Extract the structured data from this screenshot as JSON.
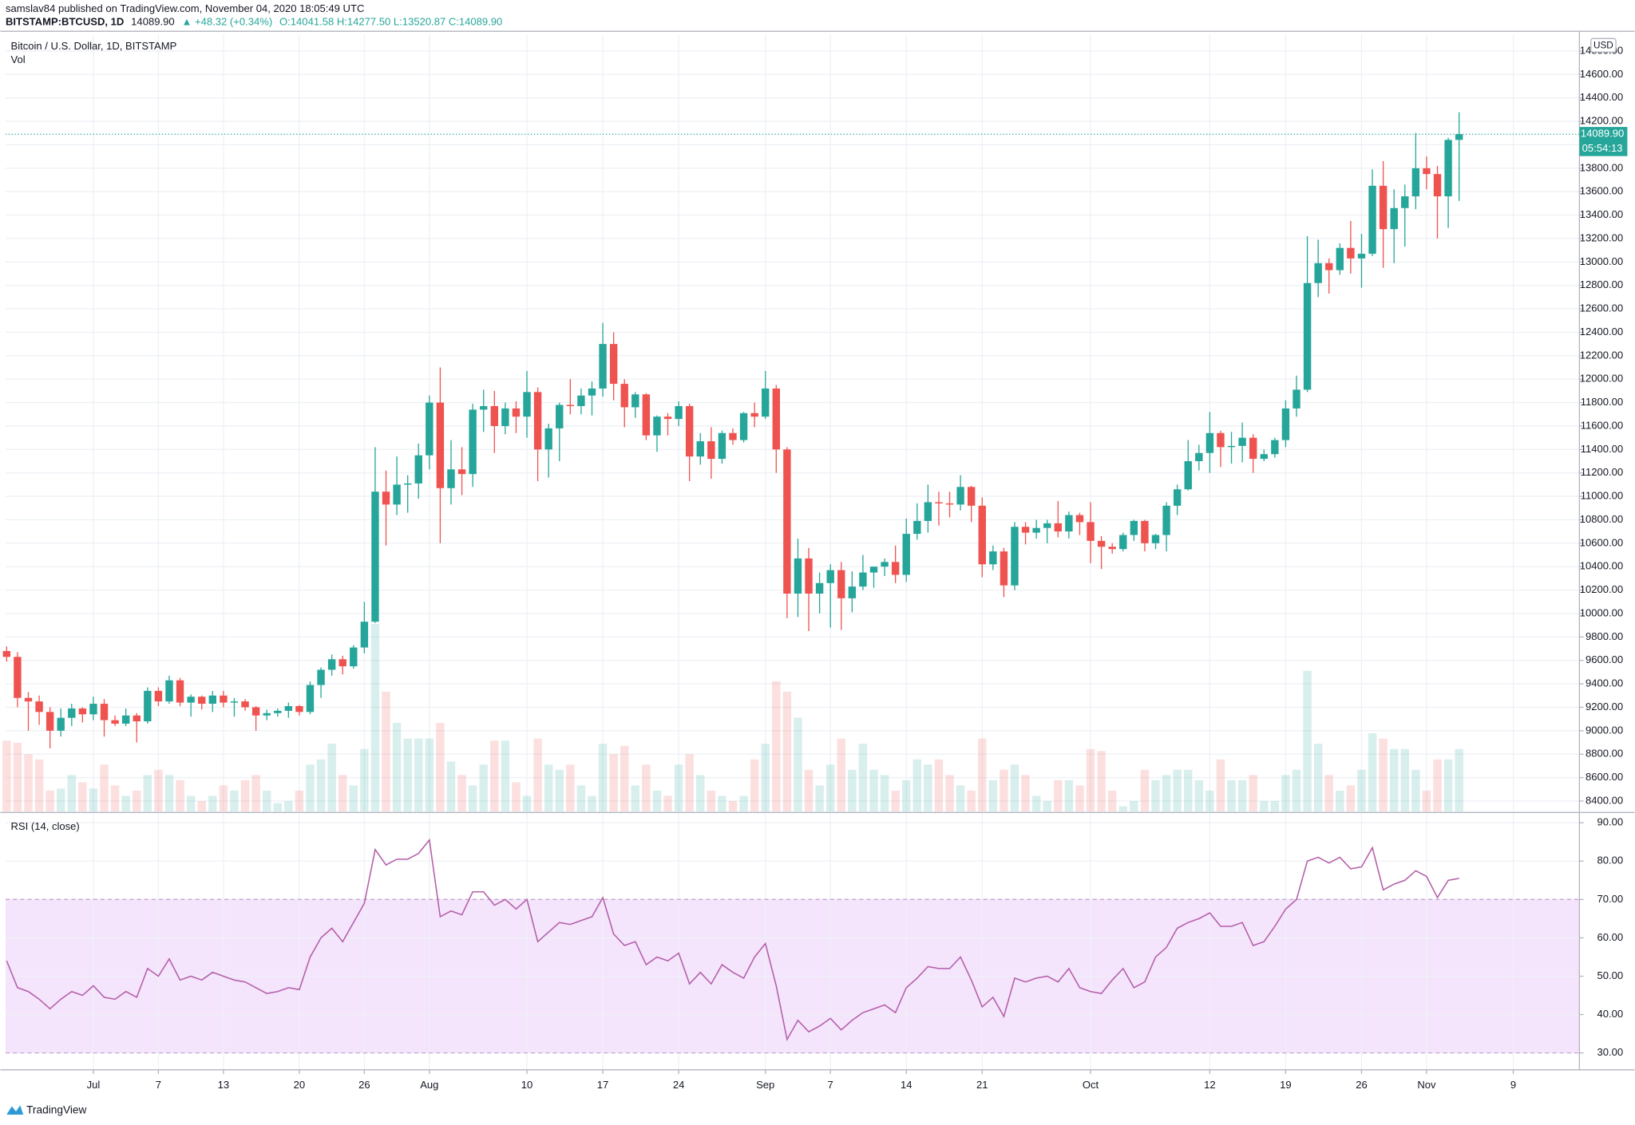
{
  "header": {
    "published": "samslav84 published on TradingView.com, November 04, 2020 18:05:49 UTC",
    "symbol": "BITSTAMP:BTCUSD, 1D",
    "last": "14089.90",
    "change": "▲ +48.32 (+0.34%)",
    "ohlc": "O:14041.58 H:14277.50 L:13520.87 C:14089.90"
  },
  "footer": {
    "brand": "TradingView"
  },
  "chart_data": {
    "type": "candlestick",
    "title": "Bitcoin / U.S. Dollar, 1D, BITSTAMP",
    "currency": "USD",
    "up_color": "#26a69a",
    "down_color": "#ef5350",
    "last_label": "14089.90",
    "countdown": "05:54:13",
    "grid": true,
    "xlim": [
      -0.1,
      145.1
    ],
    "xticks": [
      {
        "value": 8,
        "label": "Jul"
      },
      {
        "value": 14,
        "label": "7"
      },
      {
        "value": 20,
        "label": "13"
      },
      {
        "value": 27,
        "label": "20"
      },
      {
        "value": 33,
        "label": "26"
      },
      {
        "value": 39,
        "label": "Aug"
      },
      {
        "value": 48,
        "label": "10"
      },
      {
        "value": 55,
        "label": "17"
      },
      {
        "value": 62,
        "label": "24"
      },
      {
        "value": 70,
        "label": "Sep"
      },
      {
        "value": 76,
        "label": "7"
      },
      {
        "value": 83,
        "label": "14"
      },
      {
        "value": 90,
        "label": "21"
      },
      {
        "value": 100,
        "label": "Oct"
      },
      {
        "value": 111,
        "label": "12"
      },
      {
        "value": 118,
        "label": "19"
      },
      {
        "value": 125,
        "label": "26"
      },
      {
        "value": 131,
        "label": "Nov"
      },
      {
        "value": 139,
        "label": "9"
      }
    ],
    "ylim": [
      8311,
      14942
    ],
    "yticks": [
      {
        "value": 8400,
        "label": "8400.00"
      },
      {
        "value": 8600,
        "label": "8600.00"
      },
      {
        "value": 8800,
        "label": "8800.00"
      },
      {
        "value": 9000,
        "label": "9000.00"
      },
      {
        "value": 9200,
        "label": "9200.00"
      },
      {
        "value": 9400,
        "label": "9400.00"
      },
      {
        "value": 9600,
        "label": "9600.00"
      },
      {
        "value": 9800,
        "label": "9800.00"
      },
      {
        "value": 10000,
        "label": "10000.00"
      },
      {
        "value": 10200,
        "label": "10200.00"
      },
      {
        "value": 10400,
        "label": "10400.00"
      },
      {
        "value": 10600,
        "label": "10600.00"
      },
      {
        "value": 10800,
        "label": "10800.00"
      },
      {
        "value": 11000,
        "label": "11000.00"
      },
      {
        "value": 11200,
        "label": "11200.00"
      },
      {
        "value": 11400,
        "label": "11400.00"
      },
      {
        "value": 11600,
        "label": "11600.00"
      },
      {
        "value": 11800,
        "label": "11800.00"
      },
      {
        "value": 12000,
        "label": "12000.00"
      },
      {
        "value": 12200,
        "label": "12200.00"
      },
      {
        "value": 12400,
        "label": "12400.00"
      },
      {
        "value": 12600,
        "label": "12600.00"
      },
      {
        "value": 12800,
        "label": "12800.00"
      },
      {
        "value": 13000,
        "label": "13000.00"
      },
      {
        "value": 13200,
        "label": "13200.00"
      },
      {
        "value": 13400,
        "label": "13400.00"
      },
      {
        "value": 13600,
        "label": "13600.00"
      },
      {
        "value": 13800,
        "label": "13800.00"
      },
      {
        "value": 14000,
        "label": "14000.00"
      },
      {
        "value": 14200,
        "label": "14200.00"
      },
      {
        "value": 14400,
        "label": "14400.00"
      },
      {
        "value": 14600,
        "label": "14600.00"
      },
      {
        "value": 14800,
        "label": "14800.00"
      }
    ],
    "open": [
      9680,
      9630,
      9280,
      9250,
      9160,
      9000,
      9110,
      9190,
      9140,
      9230,
      9090,
      9060,
      9130,
      9080,
      9340,
      9250,
      9430,
      9240,
      9290,
      9230,
      9300,
      9240,
      9250,
      9200,
      9130,
      9150,
      9170,
      9210,
      9160,
      9390,
      9520,
      9610,
      9550,
      9710,
      9930,
      11040,
      10930,
      11100,
      11110,
      11350,
      11800,
      11070,
      11230,
      11190,
      11740,
      11770,
      11600,
      11750,
      11680,
      11890,
      11400,
      11580,
      11780,
      11770,
      11860,
      11920,
      12300,
      11960,
      11760,
      11870,
      11520,
      11680,
      11660,
      11770,
      11340,
      11470,
      11320,
      11540,
      11480,
      11710,
      11680,
      11920,
      11400,
      10170,
      10470,
      10170,
      10260,
      10370,
      10130,
      10230,
      10350,
      10400,
      10440,
      10330,
      10680,
      10790,
      10950,
      10940,
      10930,
      11080,
      10920,
      10420,
      10530,
      10240,
      10740,
      10690,
      10730,
      10770,
      10700,
      10840,
      10780,
      10620,
      10570,
      10550,
      10670,
      10790,
      10600,
      10670,
      10920,
      11060,
      11300,
      11370,
      11540,
      11420,
      11430,
      11500,
      11320,
      11360,
      11480,
      11750,
      11910,
      12820,
      12990,
      12930,
      13120,
      13030,
      13070,
      13650,
      13280,
      13460,
      13560,
      13800,
      13750,
      13560,
      14041.58
    ],
    "high": [
      9720,
      9670,
      9330,
      9300,
      9200,
      9190,
      9230,
      9200,
      9290,
      9270,
      9130,
      9190,
      9150,
      9370,
      9370,
      9470,
      9450,
      9310,
      9300,
      9340,
      9340,
      9280,
      9270,
      9210,
      9180,
      9190,
      9240,
      9220,
      9420,
      9540,
      9650,
      9640,
      9730,
      10100,
      11420,
      11220,
      11340,
      11180,
      11450,
      11860,
      12100,
      11480,
      11420,
      11790,
      11910,
      11900,
      11800,
      11810,
      12070,
      11930,
      11620,
      11800,
      12000,
      11920,
      11980,
      12480,
      12400,
      12000,
      11890,
      11880,
      11690,
      11710,
      11810,
      11790,
      11540,
      11590,
      11560,
      11580,
      11720,
      11800,
      12070,
      11950,
      11420,
      10640,
      10560,
      10350,
      10420,
      10440,
      10360,
      10500,
      10400,
      10470,
      10580,
      10810,
      10940,
      11100,
      11040,
      11040,
      11180,
      11090,
      10990,
      10580,
      10560,
      10780,
      10780,
      10800,
      10800,
      10960,
      10870,
      10860,
      10950,
      10660,
      10600,
      10690,
      10800,
      10800,
      10680,
      10950,
      11100,
      11480,
      11440,
      11720,
      11560,
      11550,
      11630,
      11530,
      11400,
      11500,
      11820,
      12030,
      13220,
      13190,
      13030,
      13160,
      13350,
      13240,
      13790,
      13860,
      13620,
      13660,
      14100,
      13900,
      13820,
      14060,
      14277.5
    ],
    "low": [
      9590,
      9200,
      9000,
      9050,
      8850,
      8950,
      9040,
      9070,
      9090,
      8950,
      9040,
      9040,
      8900,
      9060,
      9210,
      9230,
      9210,
      9120,
      9180,
      9160,
      9200,
      9120,
      9170,
      9000,
      9090,
      9120,
      9110,
      9130,
      9140,
      9280,
      9470,
      9480,
      9530,
      9660,
      9920,
      10580,
      10840,
      10860,
      10980,
      11230,
      10600,
      10930,
      11010,
      11080,
      11550,
      11370,
      11530,
      11540,
      11500,
      11130,
      11160,
      11300,
      11700,
      11700,
      11690,
      11850,
      11820,
      11590,
      11670,
      11480,
      11380,
      11520,
      11600,
      11130,
      11270,
      11150,
      11280,
      11440,
      11460,
      11590,
      11660,
      11200,
      9960,
      9970,
      9850,
      10000,
      9880,
      9860,
      10010,
      10200,
      10220,
      10320,
      10260,
      10270,
      10630,
      10690,
      10750,
      10820,
      10880,
      10780,
      10310,
      10370,
      10140,
      10200,
      10590,
      10640,
      10600,
      10650,
      10640,
      10670,
      10430,
      10380,
      10510,
      10530,
      10620,
      10530,
      10550,
      10530,
      10840,
      11050,
      11220,
      11200,
      11250,
      11280,
      11290,
      11200,
      11300,
      11330,
      11420,
      11680,
      11890,
      12700,
      12730,
      12890,
      12900,
      12780,
      13050,
      12950,
      12990,
      13130,
      13450,
      13620,
      13200,
      13290,
      13520.87
    ],
    "close": [
      9630,
      9280,
      9250,
      9160,
      9000,
      9110,
      9190,
      9140,
      9230,
      9090,
      9060,
      9130,
      9080,
      9340,
      9250,
      9430,
      9240,
      9290,
      9230,
      9300,
      9240,
      9250,
      9200,
      9130,
      9150,
      9170,
      9210,
      9160,
      9390,
      9520,
      9610,
      9550,
      9710,
      9930,
      11040,
      10930,
      11100,
      11110,
      11350,
      11800,
      11070,
      11230,
      11190,
      11740,
      11770,
      11600,
      11750,
      11680,
      11890,
      11400,
      11580,
      11780,
      11770,
      11860,
      11920,
      12300,
      11960,
      11760,
      11870,
      11520,
      11680,
      11660,
      11770,
      11340,
      11470,
      11320,
      11540,
      11480,
      11710,
      11680,
      11920,
      11400,
      10170,
      10470,
      10170,
      10260,
      10370,
      10130,
      10230,
      10350,
      10400,
      10440,
      10330,
      10680,
      10790,
      10950,
      10940,
      10930,
      11080,
      10920,
      10420,
      10530,
      10240,
      10740,
      10690,
      10730,
      10770,
      10700,
      10840,
      10780,
      10620,
      10570,
      10550,
      10670,
      10790,
      10600,
      10670,
      10920,
      11060,
      11300,
      11370,
      11540,
      11420,
      11430,
      11500,
      11320,
      11360,
      11480,
      11750,
      11910,
      12820,
      12990,
      12930,
      13120,
      13030,
      13070,
      13650,
      13280,
      13460,
      13560,
      13800,
      13750,
      13560,
      14041.58,
      14089.9
    ],
    "volume": {
      "label": "Vol",
      "values": [
        68,
        66,
        55,
        50,
        20,
        22,
        35,
        28,
        22,
        45,
        25,
        15,
        20,
        35,
        40,
        35,
        30,
        15,
        10,
        15,
        25,
        20,
        30,
        35,
        20,
        8,
        10,
        20,
        45,
        50,
        65,
        35,
        25,
        60,
        180,
        115,
        85,
        70,
        70,
        70,
        85,
        48,
        35,
        25,
        45,
        68,
        68,
        28,
        15,
        70,
        45,
        40,
        45,
        25,
        15,
        65,
        55,
        63,
        25,
        45,
        20,
        15,
        45,
        55,
        35,
        20,
        15,
        10,
        15,
        50,
        65,
        125,
        115,
        90,
        40,
        25,
        45,
        70,
        40,
        65,
        40,
        35,
        20,
        30,
        50,
        45,
        50,
        35,
        25,
        20,
        70,
        30,
        40,
        45,
        35,
        15,
        10,
        30,
        30,
        25,
        60,
        58,
        20,
        5,
        10,
        40,
        30,
        35,
        40,
        40,
        30,
        20,
        50,
        30,
        30,
        35,
        10,
        10,
        35,
        40,
        135,
        65,
        35,
        20,
        25,
        40,
        75,
        70,
        60,
        60,
        40,
        20,
        50,
        50,
        60
      ]
    },
    "rsi": {
      "label": "RSI (14, close)",
      "color": "#b45fa8",
      "band_color": "#f4e4fc",
      "band": [
        30,
        70
      ],
      "ylim": [
        25.6,
        92.4
      ],
      "yticks": [
        {
          "value": 30,
          "label": "30.00"
        },
        {
          "value": 40,
          "label": "40.00"
        },
        {
          "value": 50,
          "label": "50.00"
        },
        {
          "value": 60,
          "label": "60.00"
        },
        {
          "value": 70,
          "label": "70.00"
        },
        {
          "value": 80,
          "label": "80.00"
        },
        {
          "value": 90,
          "label": "90.00"
        }
      ],
      "values": [
        54,
        47,
        46,
        44,
        41.5,
        44,
        46,
        45,
        47.5,
        44.5,
        44,
        46,
        44.5,
        52,
        50,
        54.5,
        49,
        50,
        49,
        51,
        50,
        49,
        48.5,
        47,
        45.5,
        46,
        47,
        46.5,
        55,
        60,
        62.5,
        59,
        64,
        69,
        83,
        79,
        80.5,
        80.5,
        82,
        85.5,
        65.5,
        67,
        66,
        72,
        72,
        68.5,
        70,
        67.5,
        70,
        59,
        61.5,
        64,
        63.5,
        64.5,
        65.5,
        70.5,
        61,
        58,
        59,
        53,
        55,
        54,
        56,
        48,
        51,
        48,
        53,
        51,
        49.5,
        55,
        58.5,
        47.5,
        33.5,
        38.5,
        35.5,
        37,
        39,
        36,
        38.5,
        40.5,
        41.5,
        42.5,
        40.5,
        47,
        49.5,
        52.5,
        52,
        52,
        55,
        49,
        42,
        44.5,
        39.5,
        49.5,
        48.5,
        49.5,
        50,
        48.5,
        52,
        47,
        46,
        45.5,
        49,
        52,
        47,
        48.5,
        55,
        57.5,
        62.5,
        64,
        65,
        66.5,
        63,
        63,
        64,
        58,
        59,
        63,
        67.5,
        70,
        80,
        81,
        79.5,
        81,
        78,
        78.5,
        83.5,
        72.5,
        74,
        75,
        77.5,
        76,
        70.5,
        75,
        75.5
      ]
    }
  }
}
